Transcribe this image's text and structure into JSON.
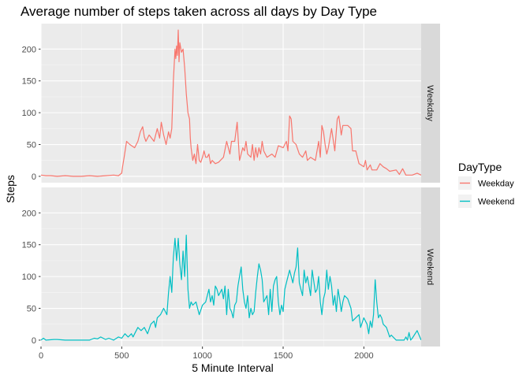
{
  "chart_data": {
    "type": "line",
    "title": "Average number of steps taken across all days by Day Type",
    "xlabel": "5 Minute Interval",
    "ylabel": "Steps",
    "xlim": [
      0,
      2355
    ],
    "ylim": [
      -10,
      240
    ],
    "x_ticks": [
      0,
      500,
      1000,
      1500,
      2000
    ],
    "y_ticks": [
      0,
      50,
      100,
      150,
      200
    ],
    "grid": true,
    "legend": {
      "title": "DayType",
      "position": "right"
    },
    "colors": {
      "Weekday": "#F8766D",
      "Weekend": "#00BFC4"
    },
    "series": [
      {
        "name": "Weekday",
        "facet": "Weekday",
        "points": [
          [
            0,
            2
          ],
          [
            30,
            1
          ],
          [
            60,
            1
          ],
          [
            100,
            0
          ],
          [
            150,
            1
          ],
          [
            200,
            0
          ],
          [
            250,
            0
          ],
          [
            300,
            1
          ],
          [
            350,
            0
          ],
          [
            400,
            1
          ],
          [
            450,
            2
          ],
          [
            480,
            1
          ],
          [
            500,
            5
          ],
          [
            505,
            15
          ],
          [
            515,
            30
          ],
          [
            530,
            55
          ],
          [
            550,
            50
          ],
          [
            580,
            45
          ],
          [
            600,
            55
          ],
          [
            615,
            70
          ],
          [
            630,
            78
          ],
          [
            640,
            62
          ],
          [
            650,
            55
          ],
          [
            670,
            65
          ],
          [
            700,
            55
          ],
          [
            720,
            75
          ],
          [
            735,
            60
          ],
          [
            745,
            85
          ],
          [
            760,
            65
          ],
          [
            775,
            50
          ],
          [
            790,
            70
          ],
          [
            800,
            60
          ],
          [
            810,
            75
          ],
          [
            820,
            150
          ],
          [
            830,
            200
          ],
          [
            835,
            185
          ],
          [
            840,
            205
          ],
          [
            845,
            190
          ],
          [
            850,
            230
          ],
          [
            855,
            180
          ],
          [
            860,
            210
          ],
          [
            870,
            195
          ],
          [
            880,
            200
          ],
          [
            890,
            170
          ],
          [
            900,
            130
          ],
          [
            910,
            100
          ],
          [
            920,
            90
          ],
          [
            925,
            60
          ],
          [
            930,
            45
          ],
          [
            940,
            25
          ],
          [
            950,
            35
          ],
          [
            960,
            20
          ],
          [
            970,
            50
          ],
          [
            980,
            25
          ],
          [
            990,
            22
          ],
          [
            1000,
            30
          ],
          [
            1010,
            40
          ],
          [
            1020,
            30
          ],
          [
            1030,
            30
          ],
          [
            1040,
            35
          ],
          [
            1050,
            20
          ],
          [
            1060,
            25
          ],
          [
            1080,
            20
          ],
          [
            1100,
            22
          ],
          [
            1130,
            30
          ],
          [
            1150,
            55
          ],
          [
            1170,
            35
          ],
          [
            1180,
            55
          ],
          [
            1200,
            55
          ],
          [
            1215,
            85
          ],
          [
            1220,
            65
          ],
          [
            1230,
            25
          ],
          [
            1240,
            35
          ],
          [
            1250,
            45
          ],
          [
            1260,
            40
          ],
          [
            1270,
            55
          ],
          [
            1280,
            35
          ],
          [
            1300,
            30
          ],
          [
            1310,
            50
          ],
          [
            1320,
            25
          ],
          [
            1330,
            45
          ],
          [
            1340,
            30
          ],
          [
            1350,
            45
          ],
          [
            1360,
            35
          ],
          [
            1370,
            55
          ],
          [
            1380,
            40
          ],
          [
            1400,
            30
          ],
          [
            1430,
            35
          ],
          [
            1450,
            30
          ],
          [
            1470,
            48
          ],
          [
            1500,
            45
          ],
          [
            1520,
            55
          ],
          [
            1530,
            40
          ],
          [
            1540,
            95
          ],
          [
            1550,
            90
          ],
          [
            1560,
            55
          ],
          [
            1580,
            50
          ],
          [
            1600,
            35
          ],
          [
            1620,
            30
          ],
          [
            1640,
            40
          ],
          [
            1650,
            25
          ],
          [
            1670,
            30
          ],
          [
            1700,
            25
          ],
          [
            1720,
            55
          ],
          [
            1730,
            30
          ],
          [
            1740,
            80
          ],
          [
            1750,
            70
          ],
          [
            1760,
            50
          ],
          [
            1770,
            35
          ],
          [
            1780,
            45
          ],
          [
            1800,
            75
          ],
          [
            1820,
            40
          ],
          [
            1835,
            90
          ],
          [
            1845,
            95
          ],
          [
            1850,
            85
          ],
          [
            1860,
            65
          ],
          [
            1870,
            80
          ],
          [
            1900,
            80
          ],
          [
            1920,
            75
          ],
          [
            1930,
            40
          ],
          [
            1950,
            40
          ],
          [
            1970,
            20
          ],
          [
            2000,
            15
          ],
          [
            2010,
            25
          ],
          [
            2020,
            10
          ],
          [
            2040,
            18
          ],
          [
            2050,
            10
          ],
          [
            2080,
            10
          ],
          [
            2100,
            20
          ],
          [
            2120,
            15
          ],
          [
            2140,
            12
          ],
          [
            2160,
            8
          ],
          [
            2200,
            10
          ],
          [
            2220,
            3
          ],
          [
            2240,
            12
          ],
          [
            2260,
            2
          ],
          [
            2300,
            2
          ],
          [
            2330,
            5
          ],
          [
            2355,
            2
          ]
        ]
      },
      {
        "name": "Weekend",
        "facet": "Weekend",
        "points": [
          [
            0,
            0
          ],
          [
            15,
            3
          ],
          [
            30,
            0
          ],
          [
            80,
            1
          ],
          [
            100,
            1
          ],
          [
            150,
            0
          ],
          [
            200,
            0
          ],
          [
            250,
            0
          ],
          [
            300,
            0
          ],
          [
            330,
            3
          ],
          [
            350,
            2
          ],
          [
            370,
            5
          ],
          [
            400,
            1
          ],
          [
            420,
            3
          ],
          [
            450,
            0
          ],
          [
            480,
            5
          ],
          [
            500,
            3
          ],
          [
            520,
            10
          ],
          [
            540,
            5
          ],
          [
            560,
            10
          ],
          [
            570,
            5
          ],
          [
            580,
            10
          ],
          [
            600,
            20
          ],
          [
            620,
            15
          ],
          [
            640,
            20
          ],
          [
            660,
            10
          ],
          [
            680,
            25
          ],
          [
            700,
            30
          ],
          [
            710,
            20
          ],
          [
            720,
            35
          ],
          [
            740,
            40
          ],
          [
            760,
            50
          ],
          [
            780,
            40
          ],
          [
            790,
            75
          ],
          [
            800,
            100
          ],
          [
            810,
            75
          ],
          [
            820,
            130
          ],
          [
            830,
            160
          ],
          [
            840,
            125
          ],
          [
            850,
            160
          ],
          [
            860,
            120
          ],
          [
            870,
            95
          ],
          [
            880,
            140
          ],
          [
            890,
            100
          ],
          [
            900,
            165
          ],
          [
            910,
            80
          ],
          [
            920,
            50
          ],
          [
            930,
            60
          ],
          [
            940,
            55
          ],
          [
            960,
            60
          ],
          [
            980,
            40
          ],
          [
            1000,
            55
          ],
          [
            1020,
            60
          ],
          [
            1040,
            80
          ],
          [
            1050,
            60
          ],
          [
            1060,
            70
          ],
          [
            1070,
            55
          ],
          [
            1080,
            85
          ],
          [
            1090,
            80
          ],
          [
            1100,
            70
          ],
          [
            1110,
            75
          ],
          [
            1120,
            80
          ],
          [
            1130,
            65
          ],
          [
            1140,
            85
          ],
          [
            1150,
            40
          ],
          [
            1160,
            80
          ],
          [
            1170,
            50
          ],
          [
            1180,
            45
          ],
          [
            1190,
            35
          ],
          [
            1200,
            55
          ],
          [
            1210,
            60
          ],
          [
            1220,
            85
          ],
          [
            1230,
            100
          ],
          [
            1240,
            115
          ],
          [
            1250,
            80
          ],
          [
            1260,
            60
          ],
          [
            1270,
            50
          ],
          [
            1280,
            70
          ],
          [
            1290,
            35
          ],
          [
            1300,
            50
          ],
          [
            1310,
            40
          ],
          [
            1320,
            45
          ],
          [
            1330,
            75
          ],
          [
            1340,
            100
          ],
          [
            1350,
            120
          ],
          [
            1360,
            110
          ],
          [
            1370,
            95
          ],
          [
            1380,
            60
          ],
          [
            1400,
            70
          ],
          [
            1410,
            40
          ],
          [
            1420,
            80
          ],
          [
            1430,
            45
          ],
          [
            1440,
            85
          ],
          [
            1450,
            95
          ],
          [
            1460,
            100
          ],
          [
            1470,
            60
          ],
          [
            1480,
            40
          ],
          [
            1490,
            55
          ],
          [
            1500,
            45
          ],
          [
            1510,
            80
          ],
          [
            1520,
            90
          ],
          [
            1540,
            110
          ],
          [
            1560,
            90
          ],
          [
            1570,
            105
          ],
          [
            1580,
            115
          ],
          [
            1590,
            145
          ],
          [
            1600,
            90
          ],
          [
            1610,
            80
          ],
          [
            1620,
            70
          ],
          [
            1630,
            110
          ],
          [
            1640,
            90
          ],
          [
            1650,
            100
          ],
          [
            1660,
            85
          ],
          [
            1670,
            70
          ],
          [
            1680,
            110
          ],
          [
            1700,
            75
          ],
          [
            1710,
            80
          ],
          [
            1720,
            100
          ],
          [
            1730,
            60
          ],
          [
            1740,
            40
          ],
          [
            1750,
            65
          ],
          [
            1760,
            75
          ],
          [
            1770,
            110
          ],
          [
            1780,
            80
          ],
          [
            1790,
            100
          ],
          [
            1800,
            85
          ],
          [
            1810,
            55
          ],
          [
            1820,
            70
          ],
          [
            1830,
            45
          ],
          [
            1840,
            80
          ],
          [
            1850,
            65
          ],
          [
            1860,
            45
          ],
          [
            1870,
            60
          ],
          [
            1880,
            70
          ],
          [
            1900,
            65
          ],
          [
            1920,
            50
          ],
          [
            1930,
            30
          ],
          [
            1950,
            35
          ],
          [
            1970,
            40
          ],
          [
            1980,
            20
          ],
          [
            2000,
            35
          ],
          [
            2020,
            25
          ],
          [
            2030,
            10
          ],
          [
            2040,
            30
          ],
          [
            2050,
            20
          ],
          [
            2060,
            40
          ],
          [
            2070,
            95
          ],
          [
            2080,
            60
          ],
          [
            2090,
            35
          ],
          [
            2100,
            40
          ],
          [
            2110,
            35
          ],
          [
            2120,
            25
          ],
          [
            2140,
            20
          ],
          [
            2160,
            5
          ],
          [
            2170,
            8
          ],
          [
            2200,
            0
          ],
          [
            2230,
            0
          ],
          [
            2250,
            0
          ],
          [
            2260,
            5
          ],
          [
            2270,
            0
          ],
          [
            2280,
            12
          ],
          [
            2290,
            0
          ],
          [
            2300,
            3
          ],
          [
            2330,
            15
          ],
          [
            2355,
            0
          ]
        ]
      }
    ]
  }
}
